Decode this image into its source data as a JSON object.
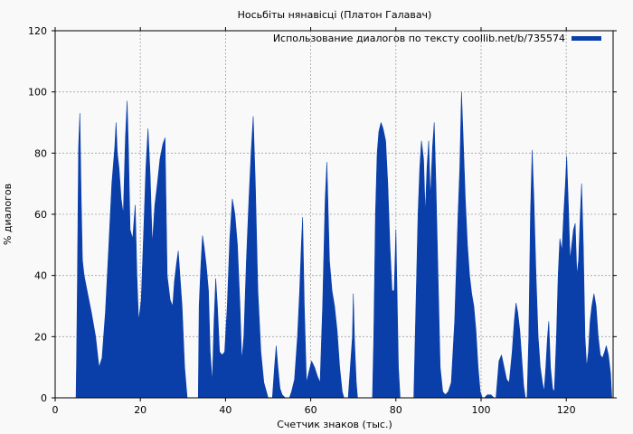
{
  "chart_data": {
    "type": "area",
    "title": "Носьбіты нянавісці (Платон Галавач)",
    "xlabel": "Счетчик знаков (тыс.)",
    "ylabel": "% диалогов",
    "xlim": [
      0,
      131
    ],
    "ylim": [
      0,
      120
    ],
    "xticks": [
      0,
      20,
      40,
      60,
      80,
      100,
      120
    ],
    "yticks": [
      0,
      20,
      40,
      60,
      80,
      100,
      120
    ],
    "grid": true,
    "legend_position": "top-right",
    "series": [
      {
        "name": "Использование диалогов по тексту coollib.net/b/735574",
        "color": "#0a3faa",
        "points": [
          [
            0,
            0
          ],
          [
            4.9,
            0
          ],
          [
            5,
            10
          ],
          [
            5.2,
            35
          ],
          [
            5.5,
            82
          ],
          [
            5.8,
            93
          ],
          [
            6.1,
            66
          ],
          [
            6.4,
            45
          ],
          [
            6.8,
            40
          ],
          [
            7.5,
            35
          ],
          [
            8.5,
            28
          ],
          [
            9.5,
            20
          ],
          [
            10.3,
            10
          ],
          [
            11,
            13
          ],
          [
            11.8,
            28
          ],
          [
            12.6,
            50
          ],
          [
            13.3,
            70
          ],
          [
            14,
            82
          ],
          [
            14.3,
            90
          ],
          [
            14.6,
            80
          ],
          [
            15,
            75
          ],
          [
            15.5,
            65
          ],
          [
            16,
            60
          ],
          [
            16.5,
            85
          ],
          [
            16.9,
            97
          ],
          [
            17.2,
            82
          ],
          [
            17.6,
            55
          ],
          [
            18.2,
            52
          ],
          [
            18.8,
            63
          ],
          [
            19.2,
            40
          ],
          [
            19.6,
            25
          ],
          [
            20.2,
            32
          ],
          [
            20.8,
            55
          ],
          [
            21.3,
            75
          ],
          [
            21.8,
            88
          ],
          [
            22.3,
            73
          ],
          [
            22.8,
            50
          ],
          [
            23.4,
            63
          ],
          [
            24,
            70
          ],
          [
            24.6,
            78
          ],
          [
            25.3,
            83
          ],
          [
            25.8,
            85
          ],
          [
            26.3,
            40
          ],
          [
            27,
            32
          ],
          [
            27.6,
            30
          ],
          [
            28,
            38
          ],
          [
            28.5,
            44
          ],
          [
            28.9,
            48
          ],
          [
            29.2,
            42
          ],
          [
            29.8,
            30
          ],
          [
            30.4,
            10
          ],
          [
            31,
            0
          ],
          [
            33.6,
            0
          ],
          [
            33.8,
            30
          ],
          [
            34.2,
            43
          ],
          [
            34.6,
            53
          ],
          [
            35,
            49
          ],
          [
            35.5,
            43
          ],
          [
            36,
            35
          ],
          [
            36.4,
            15
          ],
          [
            36.9,
            5
          ],
          [
            37.3,
            25
          ],
          [
            37.7,
            39
          ],
          [
            38.1,
            30
          ],
          [
            38.6,
            15
          ],
          [
            39.2,
            14
          ],
          [
            39.8,
            15
          ],
          [
            40.4,
            30
          ],
          [
            41,
            52
          ],
          [
            41.6,
            65
          ],
          [
            42.2,
            60
          ],
          [
            42.8,
            50
          ],
          [
            43.4,
            30
          ],
          [
            43.8,
            12
          ],
          [
            44.3,
            20
          ],
          [
            44.9,
            45
          ],
          [
            45.5,
            65
          ],
          [
            46,
            80
          ],
          [
            46.5,
            92
          ],
          [
            47,
            70
          ],
          [
            47.6,
            35
          ],
          [
            48.3,
            15
          ],
          [
            49,
            5
          ],
          [
            50,
            0
          ],
          [
            51,
            0
          ],
          [
            51.5,
            10
          ],
          [
            51.9,
            17
          ],
          [
            52.3,
            10
          ],
          [
            52.8,
            3
          ],
          [
            53.3,
            1
          ],
          [
            54,
            0
          ],
          [
            55,
            0
          ],
          [
            55.5,
            2
          ],
          [
            56.2,
            6
          ],
          [
            56.9,
            20
          ],
          [
            57.4,
            35
          ],
          [
            57.8,
            50
          ],
          [
            58.1,
            59
          ],
          [
            58.5,
            30
          ],
          [
            59,
            5
          ],
          [
            59.5,
            8
          ],
          [
            60.2,
            12
          ],
          [
            60.9,
            10
          ],
          [
            61.6,
            7
          ],
          [
            62.2,
            5
          ],
          [
            62.8,
            30
          ],
          [
            63.4,
            65
          ],
          [
            63.8,
            77
          ],
          [
            64.4,
            45
          ],
          [
            65,
            35
          ],
          [
            65.6,
            30
          ],
          [
            66.2,
            22
          ],
          [
            66.8,
            10
          ],
          [
            67.4,
            2
          ],
          [
            67.8,
            0
          ],
          [
            68.8,
            0
          ],
          [
            69.3,
            10
          ],
          [
            69.8,
            20
          ],
          [
            70,
            34
          ],
          [
            70.3,
            18
          ],
          [
            70.7,
            5
          ],
          [
            71,
            0
          ],
          [
            74.5,
            0
          ],
          [
            74.8,
            20
          ],
          [
            75.2,
            60
          ],
          [
            75.6,
            80
          ],
          [
            76,
            87
          ],
          [
            76.5,
            90
          ],
          [
            77,
            88
          ],
          [
            77.6,
            84
          ],
          [
            78.1,
            70
          ],
          [
            78.6,
            50
          ],
          [
            79.1,
            35
          ],
          [
            79.6,
            35
          ],
          [
            80,
            55
          ],
          [
            80.2,
            40
          ],
          [
            80.6,
            10
          ],
          [
            81,
            0
          ],
          [
            84.2,
            0
          ],
          [
            84.7,
            30
          ],
          [
            85.2,
            60
          ],
          [
            85.6,
            75
          ],
          [
            86,
            84
          ],
          [
            86.5,
            78
          ],
          [
            86.9,
            60
          ],
          [
            87.3,
            75
          ],
          [
            87.7,
            84
          ],
          [
            88.1,
            65
          ],
          [
            88.6,
            82
          ],
          [
            89,
            90
          ],
          [
            89.4,
            70
          ],
          [
            89.9,
            40
          ],
          [
            90.4,
            10
          ],
          [
            91,
            2
          ],
          [
            91.6,
            1
          ],
          [
            92.3,
            2
          ],
          [
            93,
            5
          ],
          [
            93.8,
            25
          ],
          [
            94.6,
            60
          ],
          [
            95,
            75
          ],
          [
            95.4,
            100
          ],
          [
            95.8,
            85
          ],
          [
            96.3,
            65
          ],
          [
            96.8,
            50
          ],
          [
            97.3,
            40
          ],
          [
            97.8,
            34
          ],
          [
            98.3,
            30
          ],
          [
            98.8,
            22
          ],
          [
            99.3,
            10
          ],
          [
            99.8,
            2
          ],
          [
            100.3,
            0
          ],
          [
            100.8,
            0
          ],
          [
            101.5,
            1
          ],
          [
            102.3,
            1
          ],
          [
            103,
            0
          ],
          [
            103.5,
            0
          ],
          [
            104.2,
            12
          ],
          [
            104.8,
            14
          ],
          [
            105.4,
            10
          ],
          [
            106,
            6
          ],
          [
            106.6,
            5
          ],
          [
            107.3,
            15
          ],
          [
            107.8,
            25
          ],
          [
            108.2,
            31
          ],
          [
            108.6,
            28
          ],
          [
            109.1,
            22
          ],
          [
            109.6,
            12
          ],
          [
            110,
            4
          ],
          [
            110.4,
            0
          ],
          [
            110.8,
            0
          ],
          [
            111.2,
            20
          ],
          [
            111.6,
            60
          ],
          [
            112,
            81
          ],
          [
            112.4,
            65
          ],
          [
            112.9,
            40
          ],
          [
            113.4,
            20
          ],
          [
            113.9,
            10
          ],
          [
            114.4,
            5
          ],
          [
            114.8,
            2
          ],
          [
            115.2,
            10
          ],
          [
            115.6,
            20
          ],
          [
            115.9,
            25
          ],
          [
            116.3,
            10
          ],
          [
            116.8,
            3
          ],
          [
            117.2,
            2
          ],
          [
            117.7,
            20
          ],
          [
            118.1,
            40
          ],
          [
            118.5,
            52
          ],
          [
            119,
            48
          ],
          [
            119.4,
            60
          ],
          [
            119.8,
            70
          ],
          [
            120.1,
            79
          ],
          [
            120.5,
            63
          ],
          [
            120.9,
            45
          ],
          [
            121.3,
            50
          ],
          [
            121.7,
            55
          ],
          [
            122.1,
            57
          ],
          [
            122.5,
            40
          ],
          [
            122.9,
            45
          ],
          [
            123.3,
            60
          ],
          [
            123.6,
            70
          ],
          [
            124,
            50
          ],
          [
            124.4,
            20
          ],
          [
            124.8,
            10
          ],
          [
            125.2,
            15
          ],
          [
            125.6,
            25
          ],
          [
            126,
            30
          ],
          [
            126.5,
            34
          ],
          [
            127,
            30
          ],
          [
            127.5,
            20
          ],
          [
            128,
            14
          ],
          [
            128.5,
            13
          ],
          [
            129,
            15
          ],
          [
            129.4,
            17
          ],
          [
            129.9,
            14
          ],
          [
            130.4,
            8
          ],
          [
            130.7,
            0
          ]
        ]
      }
    ]
  }
}
